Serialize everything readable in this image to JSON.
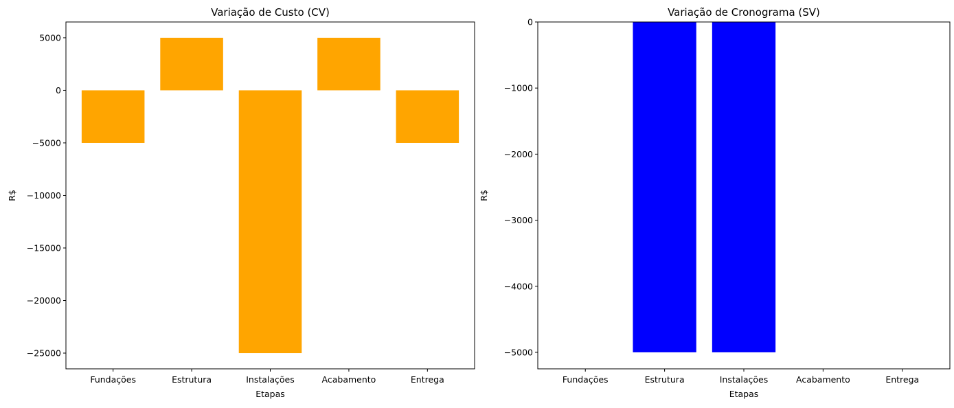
{
  "chart_data": [
    {
      "type": "bar",
      "title": "Variação de Custo (CV)",
      "xlabel": "Etapas",
      "ylabel": "R$",
      "categories": [
        "Fundações",
        "Estrutura",
        "Instalações",
        "Acabamento",
        "Entrega"
      ],
      "values": [
        -5000,
        5000,
        -25000,
        5000,
        -5000
      ],
      "ylim": [
        -26500,
        6500
      ],
      "yticks": [
        5000,
        0,
        -5000,
        -10000,
        -15000,
        -20000,
        -25000
      ],
      "ytick_labels": [
        "5000",
        "0",
        "−5000",
        "−10000",
        "−15000",
        "−20000",
        "−25000"
      ],
      "color": "#ffa500",
      "grid": false
    },
    {
      "type": "bar",
      "title": "Variação de Cronograma (SV)",
      "xlabel": "Etapas",
      "ylabel": "R$",
      "categories": [
        "Fundações",
        "Estrutura",
        "Instalações",
        "Acabamento",
        "Entrega"
      ],
      "values": [
        0,
        -5000,
        -5000,
        0,
        0
      ],
      "ylim": [
        -5250,
        0
      ],
      "yticks": [
        0,
        -1000,
        -2000,
        -3000,
        -4000,
        -5000
      ],
      "ytick_labels": [
        "0",
        "−1000",
        "−2000",
        "−3000",
        "−4000",
        "−5000"
      ],
      "color": "#0000ff",
      "grid": false
    }
  ]
}
